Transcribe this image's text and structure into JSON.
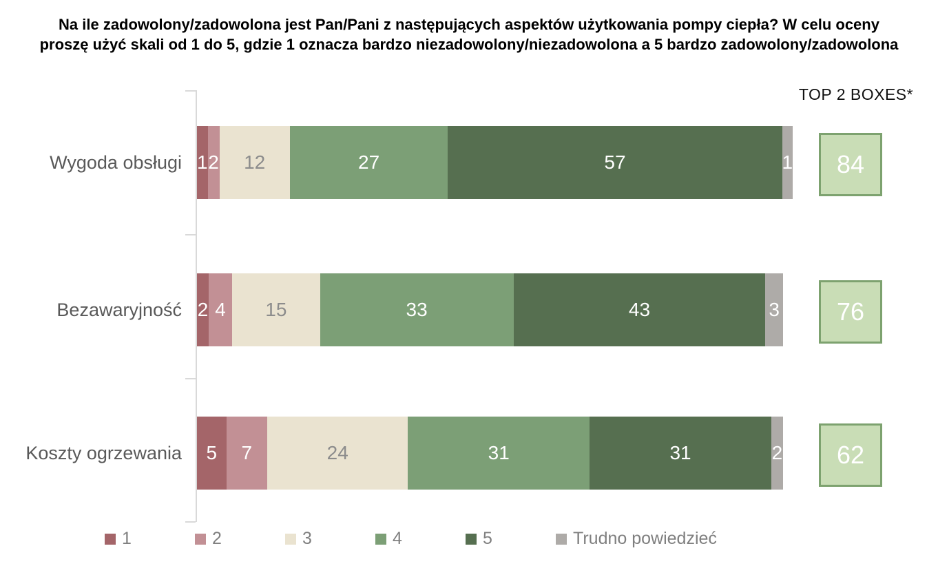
{
  "page": {
    "background": "#ffffff"
  },
  "chart_data": {
    "type": "bar",
    "variant": "horizontal-stacked",
    "title": "Na ile zadowolony/zadowolona jest Pan/Pani z następujących aspektów użytkowania pompy ciepła? W celu oceny proszę użyć skali od 1 do 5, gdzie 1 oznacza bardzo niezadowolony/niezadowolona a 5 bardzo zadowolony/zadowolona",
    "categories": [
      "Wygoda obsługi",
      "Bezawaryjność",
      "Koszty ogrzewania"
    ],
    "series": [
      {
        "name": "1",
        "color": "#a46569",
        "label_color": "#ffffff",
        "values": [
          1,
          2,
          5
        ]
      },
      {
        "name": "2",
        "color": "#c29095",
        "label_color": "#ffffff",
        "values": [
          2,
          4,
          7
        ]
      },
      {
        "name": "3",
        "color": "#eae3d0",
        "label_color": "#8c8c8c",
        "values": [
          12,
          15,
          24
        ]
      },
      {
        "name": "4",
        "color": "#7c9f76",
        "label_color": "#ffffff",
        "values": [
          27,
          33,
          31
        ]
      },
      {
        "name": "5",
        "color": "#566f50",
        "label_color": "#ffffff",
        "values": [
          57,
          43,
          31
        ]
      },
      {
        "name": "Trudno powiedzieć",
        "color": "#aeaba8",
        "label_color": "#ffffff",
        "values": [
          1,
          3,
          2
        ]
      }
    ],
    "top2_boxes": {
      "label": "TOP 2 BOXES*",
      "values": [
        84,
        76,
        62
      ],
      "fill": "#c9ddb6",
      "border": "#7da26f",
      "text_color": "#ffffff"
    },
    "xlim": [
      0,
      100
    ],
    "grid": false,
    "legend_position": "bottom",
    "axis_color": "#d9d9d9",
    "category_label_color": "#595959"
  }
}
